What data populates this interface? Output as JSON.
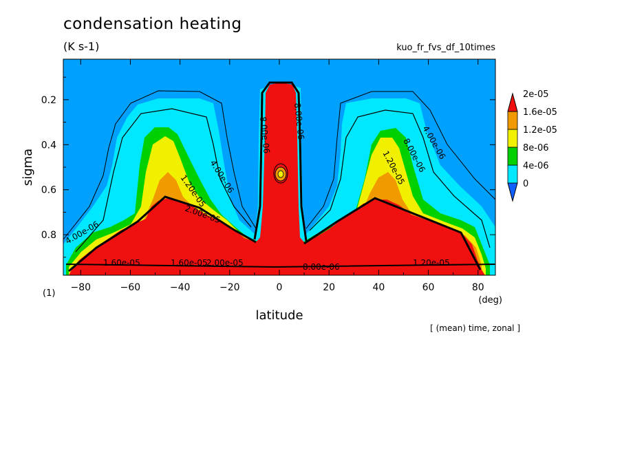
{
  "header": {
    "title": "condensation heating",
    "units": "(K s-1)",
    "run_name": "kuo_fr_fvs_df_10times",
    "footnote": "[ (mean) time, zonal ]",
    "frame_label": "(1)"
  },
  "chart_data": {
    "type": "contour",
    "xlabel": "latitude",
    "xunit": "(deg)",
    "ylabel": "sigma",
    "xlim": [
      -87,
      87
    ],
    "ylim": [
      0.98,
      0.02
    ],
    "y_inverted": true,
    "xticks": [
      -80,
      -60,
      -40,
      -20,
      0,
      20,
      40,
      60,
      80
    ],
    "yticks": [
      0.2,
      0.4,
      0.6,
      0.8
    ],
    "colorbar": {
      "levels": [
        "0",
        "4e-06",
        "8e-06",
        "1.2e-05",
        "1.6e-05",
        "2e-05"
      ],
      "colors": [
        "#00a0ff",
        "#00e8ff",
        "#00d000",
        "#f0f000",
        "#f09a00",
        "#f01010"
      ],
      "extend": "both"
    },
    "contour_labels": [
      "4.00e-06",
      "8.00e-06",
      "1.20e-05",
      "1.60e-05",
      "2.00e-05"
    ],
    "background_color": "#00a0ff"
  }
}
